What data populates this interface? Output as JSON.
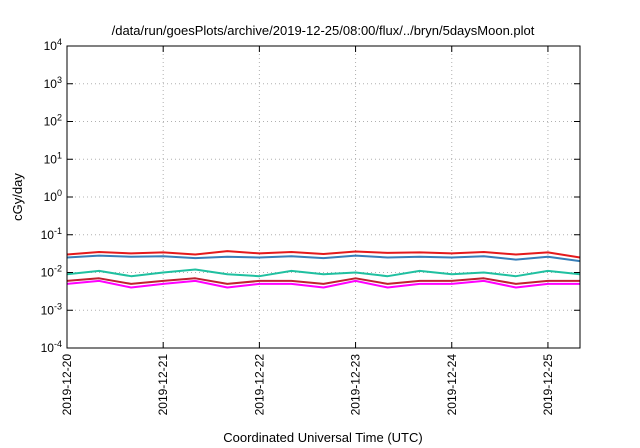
{
  "chart_data": {
    "type": "line",
    "title": "/data/run/goesPlots/archive/2019-12-25/08:00/flux/../bryn/5daysMoon.plot",
    "xlabel": "Coordinated Universal Time (UTC)",
    "ylabel": "cGy/day",
    "yscale": "log",
    "ylim": [
      0.0001,
      10000
    ],
    "xlim": [
      "2019-12-20 00:00",
      "2019-12-25 08:00"
    ],
    "grid": true,
    "y_ticks": [
      {
        "base": "10",
        "exp": "-4",
        "value": 0.0001
      },
      {
        "base": "10",
        "exp": "-3",
        "value": 0.001
      },
      {
        "base": "10",
        "exp": "-2",
        "value": 0.01
      },
      {
        "base": "10",
        "exp": "-1",
        "value": 0.1
      },
      {
        "base": "10",
        "exp": "0",
        "value": 1
      },
      {
        "base": "10",
        "exp": "1",
        "value": 10
      },
      {
        "base": "10",
        "exp": "2",
        "value": 100
      },
      {
        "base": "10",
        "exp": "3",
        "value": 1000
      },
      {
        "base": "10",
        "exp": "4",
        "value": 10000
      }
    ],
    "x_ticks": [
      "2019-12-20",
      "2019-12-21",
      "2019-12-22",
      "2019-12-23",
      "2019-12-24",
      "2019-12-25"
    ],
    "series": [
      {
        "color": "#e41a1c",
        "x": [
          "2019-12-20 00:00",
          "2019-12-20 08:00",
          "2019-12-20 16:00",
          "2019-12-21 00:00",
          "2019-12-21 08:00",
          "2019-12-21 16:00",
          "2019-12-22 00:00",
          "2019-12-22 08:00",
          "2019-12-22 16:00",
          "2019-12-23 00:00",
          "2019-12-23 08:00",
          "2019-12-23 16:00",
          "2019-12-24 00:00",
          "2019-12-24 08:00",
          "2019-12-24 16:00",
          "2019-12-25 00:00",
          "2019-12-25 08:00"
        ],
        "values": [
          0.03,
          0.035,
          0.032,
          0.034,
          0.03,
          0.037,
          0.032,
          0.035,
          0.031,
          0.036,
          0.033,
          0.034,
          0.032,
          0.035,
          0.03,
          0.034,
          0.025
        ]
      },
      {
        "color": "#377eb8",
        "x": [
          "2019-12-20 00:00",
          "2019-12-20 08:00",
          "2019-12-20 16:00",
          "2019-12-21 00:00",
          "2019-12-21 08:00",
          "2019-12-21 16:00",
          "2019-12-22 00:00",
          "2019-12-22 08:00",
          "2019-12-22 16:00",
          "2019-12-23 00:00",
          "2019-12-23 08:00",
          "2019-12-23 16:00",
          "2019-12-24 00:00",
          "2019-12-24 08:00",
          "2019-12-24 16:00",
          "2019-12-25 00:00",
          "2019-12-25 08:00"
        ],
        "values": [
          0.025,
          0.028,
          0.026,
          0.027,
          0.024,
          0.026,
          0.025,
          0.027,
          0.024,
          0.028,
          0.025,
          0.026,
          0.025,
          0.027,
          0.022,
          0.026,
          0.02
        ]
      },
      {
        "color": "#20c0a0",
        "x": [
          "2019-12-20 00:00",
          "2019-12-20 08:00",
          "2019-12-20 16:00",
          "2019-12-21 00:00",
          "2019-12-21 08:00",
          "2019-12-21 16:00",
          "2019-12-22 00:00",
          "2019-12-22 08:00",
          "2019-12-22 16:00",
          "2019-12-23 00:00",
          "2019-12-23 08:00",
          "2019-12-23 16:00",
          "2019-12-24 00:00",
          "2019-12-24 08:00",
          "2019-12-24 16:00",
          "2019-12-25 00:00",
          "2019-12-25 08:00"
        ],
        "values": [
          0.009,
          0.011,
          0.008,
          0.01,
          0.012,
          0.009,
          0.008,
          0.011,
          0.009,
          0.01,
          0.008,
          0.011,
          0.009,
          0.01,
          0.008,
          0.011,
          0.009
        ]
      },
      {
        "color": "#c02030",
        "x": [
          "2019-12-20 00:00",
          "2019-12-20 08:00",
          "2019-12-20 16:00",
          "2019-12-21 00:00",
          "2019-12-21 08:00",
          "2019-12-21 16:00",
          "2019-12-22 00:00",
          "2019-12-22 08:00",
          "2019-12-22 16:00",
          "2019-12-23 00:00",
          "2019-12-23 08:00",
          "2019-12-23 16:00",
          "2019-12-24 00:00",
          "2019-12-24 08:00",
          "2019-12-24 16:00",
          "2019-12-25 00:00",
          "2019-12-25 08:00"
        ],
        "values": [
          0.006,
          0.007,
          0.005,
          0.006,
          0.007,
          0.005,
          0.006,
          0.006,
          0.005,
          0.007,
          0.005,
          0.006,
          0.006,
          0.007,
          0.005,
          0.006,
          0.006
        ]
      },
      {
        "color": "#ff00ff",
        "x": [
          "2019-12-20 00:00",
          "2019-12-20 08:00",
          "2019-12-20 16:00",
          "2019-12-21 00:00",
          "2019-12-21 08:00",
          "2019-12-21 16:00",
          "2019-12-22 00:00",
          "2019-12-22 08:00",
          "2019-12-22 16:00",
          "2019-12-23 00:00",
          "2019-12-23 08:00",
          "2019-12-23 16:00",
          "2019-12-24 00:00",
          "2019-12-24 08:00",
          "2019-12-24 16:00",
          "2019-12-25 00:00",
          "2019-12-25 08:00"
        ],
        "values": [
          0.005,
          0.006,
          0.004,
          0.005,
          0.006,
          0.004,
          0.005,
          0.005,
          0.004,
          0.006,
          0.004,
          0.005,
          0.005,
          0.006,
          0.004,
          0.005,
          0.005
        ]
      }
    ]
  }
}
